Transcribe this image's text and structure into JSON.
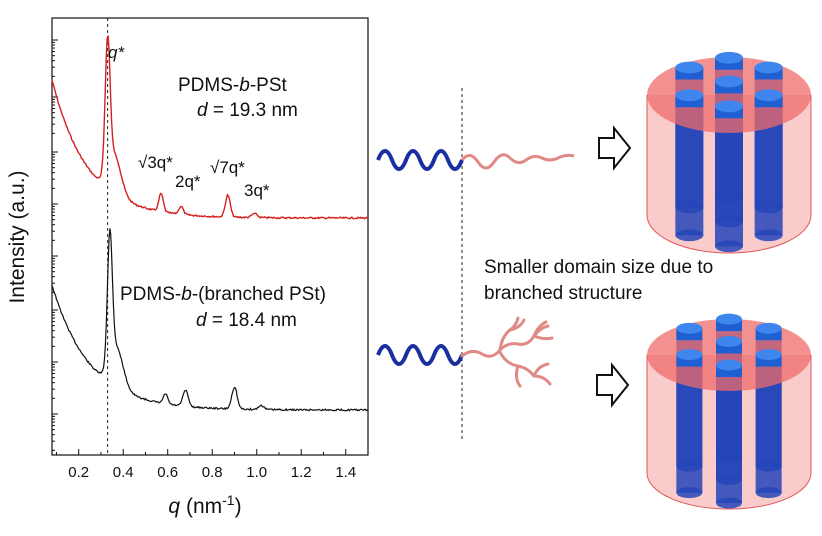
{
  "chart_data": {
    "type": "line",
    "xlabel_var": "q",
    "xlabel_unit": "(nm",
    "xlabel_exp": "-1",
    "xlabel_close": ")",
    "ylabel": "Intensity (a.u.)",
    "xlim": [
      0.08,
      1.5
    ],
    "x_ticks": [
      "0.2",
      "0.4",
      "0.6",
      "0.8",
      "1.0",
      "1.2",
      "1.4"
    ],
    "y_scale": "log (arbitrary units, unlabeled ticks)",
    "reference_line": {
      "x": 0.33,
      "style": "dashed"
    },
    "series": [
      {
        "name": "PDMS-b-PSt",
        "color": "#d42020",
        "d_label": "= 19.3 nm",
        "peaks": [
          {
            "label": "q*",
            "x": 0.33
          },
          {
            "label": "√3q*",
            "x": 0.57
          },
          {
            "label": "2q*",
            "x": 0.66
          },
          {
            "label": "√7q*",
            "x": 0.87
          },
          {
            "label": "3q*",
            "x": 0.99
          }
        ]
      },
      {
        "name": "PDMS-b-(branched PSt)",
        "color": "#111111",
        "d_label": "= 18.4 nm",
        "peaks": [
          {
            "x": 0.34
          },
          {
            "x": 0.59
          },
          {
            "x": 0.68
          },
          {
            "x": 0.9
          },
          {
            "x": 1.02
          }
        ]
      }
    ]
  },
  "labels": {
    "peak_q": "q*",
    "peak_r3": "√3q*",
    "peak_2q": "2q*",
    "peak_r7": "√7q*",
    "peak_3q": "3q*",
    "s1_name_a": "PDMS-",
    "s1_name_b": "b",
    "s1_name_c": "-PSt",
    "s2_name_a": "PDMS-",
    "s2_name_b": "b",
    "s2_name_c": "-(branched PSt)",
    "d_var": "d",
    "note_line1": "Smaller domain size due to",
    "note_line2": "branched structure"
  },
  "colors": {
    "pdms_chain": "#1a2fa0",
    "pst_chain": "#e08a86",
    "matrix": "#ef6b6b",
    "cylinder": "#1f5fd1"
  },
  "icons": [
    "arrow-right-icon"
  ]
}
